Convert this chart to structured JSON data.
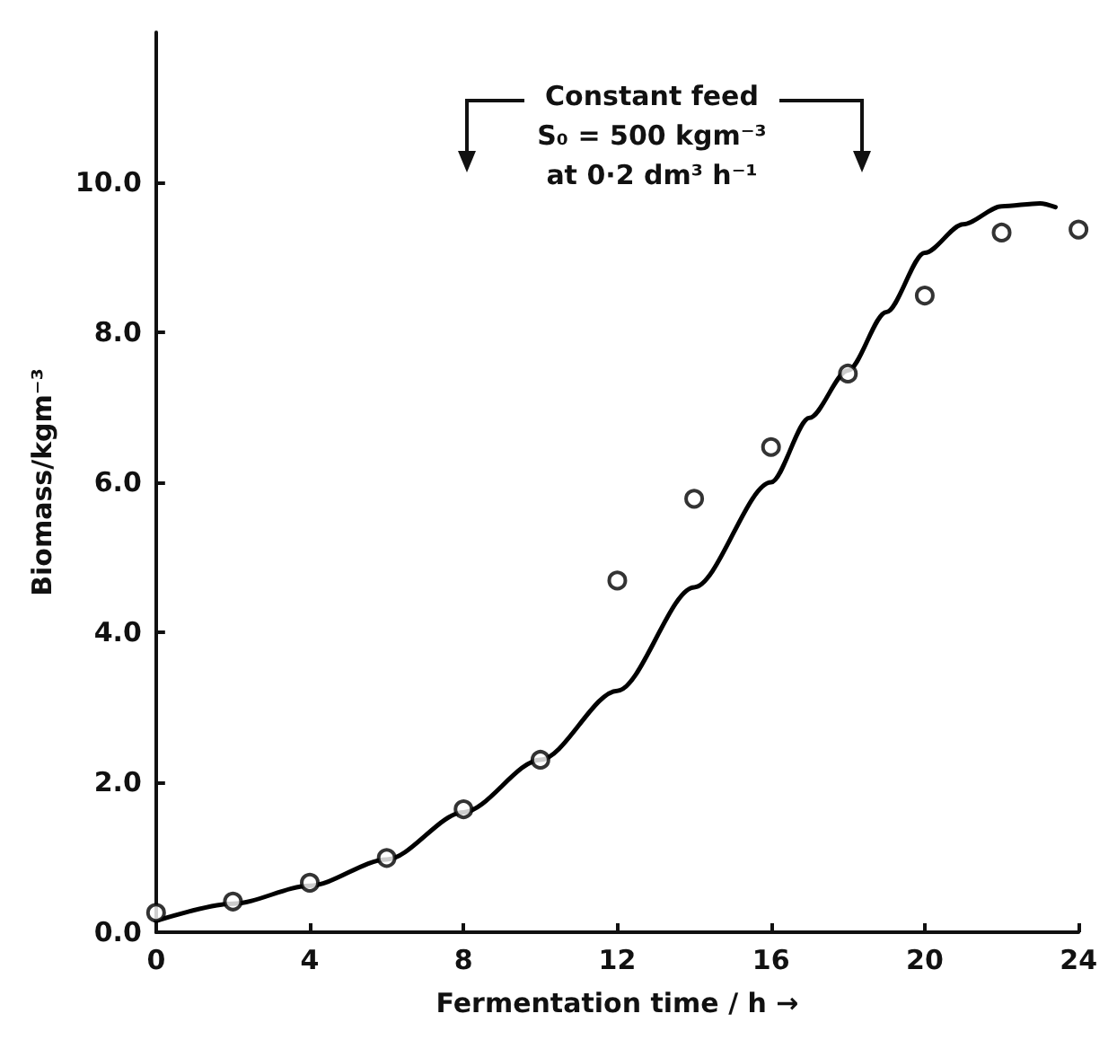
{
  "chart_data": {
    "type": "scatter",
    "xlabel": "Fermentation time / h →",
    "ylabel": "Biomass/kgm⁻³",
    "annotations": [
      "Constant feed",
      "S₀ = 500 kgm⁻³",
      "at 0·2 dm³ h⁻¹"
    ],
    "xlim": [
      0,
      24
    ],
    "xticks": [
      0,
      4,
      8,
      12,
      16,
      20,
      24
    ],
    "ylim": [
      0,
      12
    ],
    "yticks": [
      {
        "value": 0,
        "label": "0.0"
      },
      {
        "value": 2,
        "label": "2.0"
      },
      {
        "value": 4,
        "label": "4.0"
      },
      {
        "value": 6,
        "label": "6.0"
      },
      {
        "value": 8,
        "label": "8.0"
      },
      {
        "value": 10,
        "label": "10.0"
      }
    ],
    "series": [
      {
        "color": "#000000",
        "marker": "circle",
        "x": [
          0,
          2,
          4,
          6,
          8,
          10,
          12,
          14,
          16,
          18,
          20,
          22,
          24
        ],
        "values": [
          0.26,
          0.41,
          0.66,
          0.99,
          1.64,
          2.3,
          4.69,
          5.78,
          6.47,
          7.45,
          8.49,
          9.33,
          9.37
        ]
      },
      {
        "type": "line",
        "color": "#000000",
        "marker": "none",
        "line_style": "solid",
        "x": [
          0,
          2,
          4,
          6,
          8,
          10,
          12,
          14,
          16,
          17,
          18,
          19,
          20,
          21,
          22,
          23,
          23.4
        ],
        "values": [
          0.15,
          0.38,
          0.62,
          0.97,
          1.6,
          2.3,
          3.22,
          4.6,
          6.0,
          6.86,
          7.49,
          8.27,
          9.06,
          9.44,
          9.68,
          9.72,
          9.67
        ]
      }
    ]
  }
}
